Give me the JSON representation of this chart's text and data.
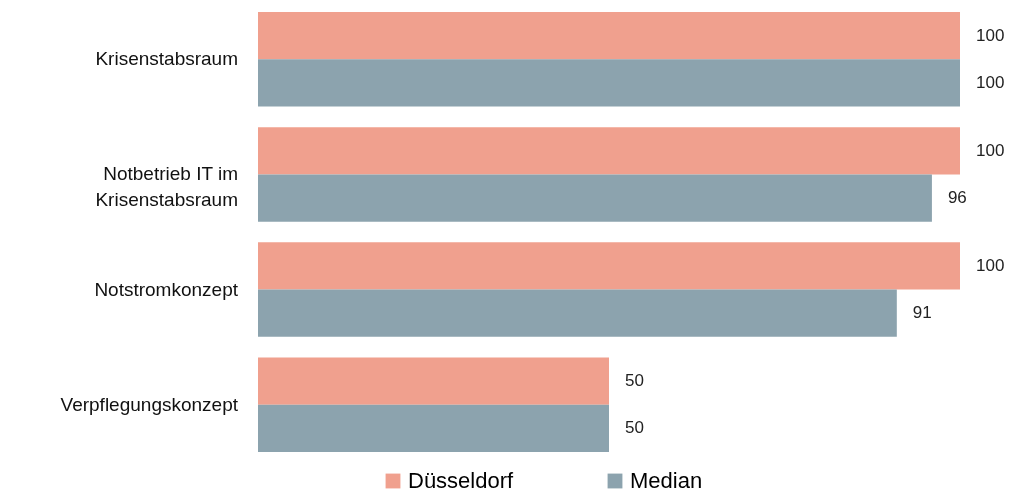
{
  "chart_data": {
    "type": "bar",
    "orientation": "horizontal",
    "categories": [
      "Krisenstabsraum",
      "Notbetrieb IT im Krisenstabsraum",
      "Notstromkonzept",
      "Verpflegungskonzept"
    ],
    "series": [
      {
        "name": "Düsseldorf",
        "color": "#f0a08e",
        "values": [
          100,
          100,
          100,
          50
        ]
      },
      {
        "name": "Median",
        "color": "#8ca3ae",
        "values": [
          100,
          96,
          91,
          50
        ]
      }
    ],
    "xlim": [
      0,
      100
    ],
    "data_labels": true,
    "legend": "bottom",
    "tick_labels": "y"
  }
}
